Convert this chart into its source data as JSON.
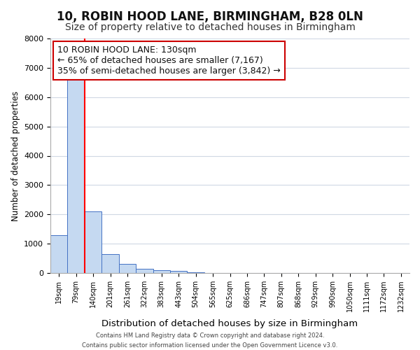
{
  "title1": "10, ROBIN HOOD LANE, BIRMINGHAM, B28 0LN",
  "title2": "Size of property relative to detached houses in Birmingham",
  "xlabel": "Distribution of detached houses by size in Birmingham",
  "ylabel": "Number of detached properties",
  "annotation_line1": "10 ROBIN HOOD LANE: 130sqm",
  "annotation_line2": "← 65% of detached houses are smaller (7,167)",
  "annotation_line3": "35% of semi-detached houses are larger (3,842) →",
  "footer1": "Contains HM Land Registry data © Crown copyright and database right 2024.",
  "footer2": "Contains public sector information licensed under the Open Government Licence v3.0.",
  "bin_labels": [
    "19sqm",
    "79sqm",
    "140sqm",
    "201sqm",
    "261sqm",
    "322sqm",
    "383sqm",
    "443sqm",
    "504sqm",
    "565sqm",
    "625sqm",
    "686sqm",
    "747sqm",
    "807sqm",
    "868sqm",
    "929sqm",
    "990sqm",
    "1050sqm",
    "1111sqm",
    "1172sqm",
    "1232sqm"
  ],
  "bar_heights": [
    1300,
    6600,
    2100,
    650,
    300,
    150,
    100,
    60,
    30,
    10,
    5,
    0,
    0,
    0,
    0,
    0,
    0,
    0,
    0,
    0,
    0
  ],
  "bar_color": "#c5d9f1",
  "bar_edge_color": "#4472c4",
  "property_line_x": 1.5,
  "annotation_box_color": "#cc0000",
  "ylim": [
    0,
    8000
  ],
  "yticks": [
    0,
    1000,
    2000,
    3000,
    4000,
    5000,
    6000,
    7000,
    8000
  ],
  "grid_color": "#d0d8e4",
  "bg_color": "#ffffff",
  "title_fontsize": 12,
  "subtitle_fontsize": 10,
  "ann_fontsize": 9
}
